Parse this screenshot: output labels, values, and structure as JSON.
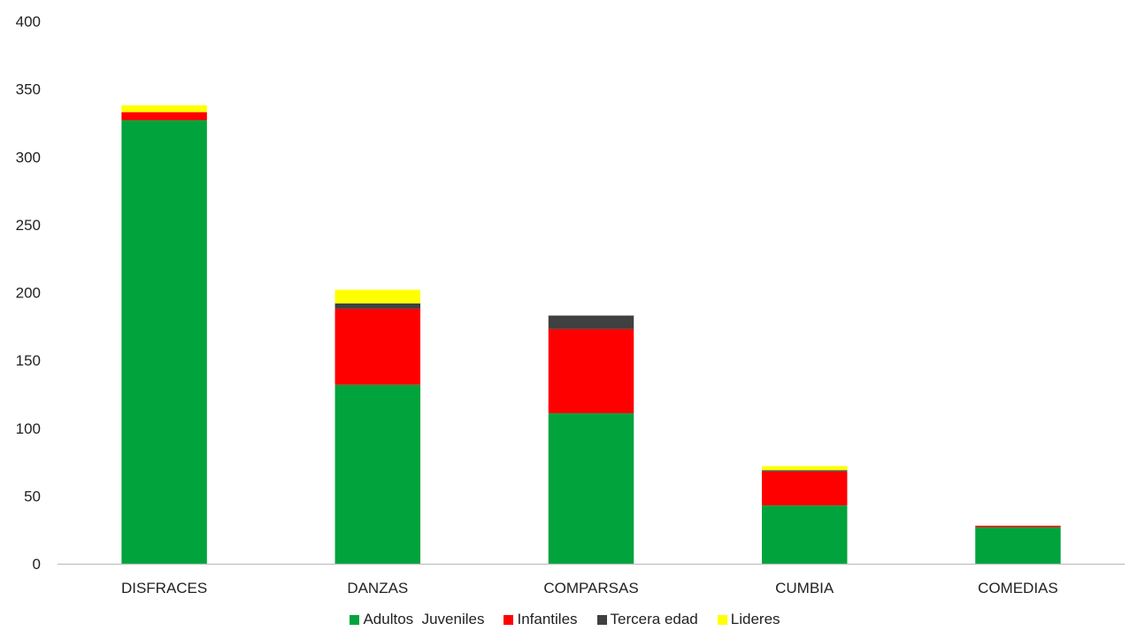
{
  "chart_data": {
    "type": "bar",
    "stacked": true,
    "categories": [
      "DISFRACES",
      "DANZAS",
      "COMPARSAS",
      "CUMBIA",
      "COMEDIAS"
    ],
    "series": [
      {
        "name": "Adultos  Juveniles",
        "color": "#00A33C",
        "values": [
          327,
          132,
          111,
          43,
          27
        ]
      },
      {
        "name": "Infantiles",
        "color": "#FF0000",
        "values": [
          6,
          56,
          62,
          25,
          1
        ]
      },
      {
        "name": "Tercera edad",
        "color": "#404040",
        "values": [
          0,
          4,
          10,
          1,
          0
        ]
      },
      {
        "name": "Lideres",
        "color": "#FFFF00",
        "values": [
          5,
          10,
          0,
          3,
          0
        ]
      }
    ],
    "ylim": [
      0,
      400
    ],
    "yticks": [
      0,
      50,
      100,
      150,
      200,
      250,
      300,
      350,
      400
    ],
    "grid": false,
    "legend": "bottom"
  }
}
